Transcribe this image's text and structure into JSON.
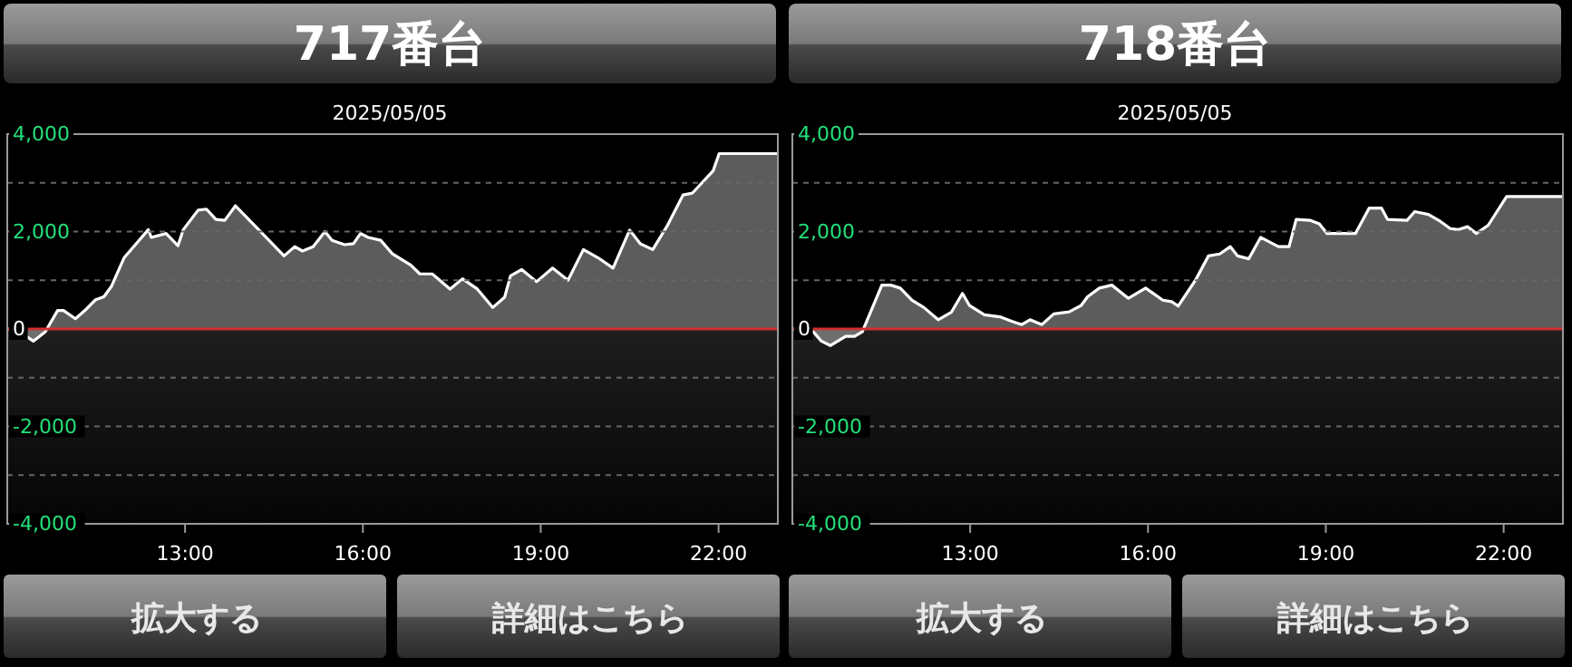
{
  "chart_data": [
    {
      "type": "area",
      "title": "717番台",
      "subtitle": "2025/05/05",
      "xlim": [
        10,
        23
      ],
      "xticks": [
        {
          "value": 13,
          "label": "13:00"
        },
        {
          "value": 16,
          "label": "16:00"
        },
        {
          "value": 19,
          "label": "19:00"
        },
        {
          "value": 22,
          "label": "22:00"
        }
      ],
      "ylim": [
        -4000,
        4000
      ],
      "yticks": [
        {
          "value": 4000,
          "label": "4,000"
        },
        {
          "value": 3000,
          "label": null
        },
        {
          "value": 2000,
          "label": "2,000"
        },
        {
          "value": 1000,
          "label": null
        },
        0,
        {
          "value": -1000,
          "label": null
        },
        {
          "value": -2000,
          "label": "-2,000"
        },
        {
          "value": -3000,
          "label": null
        },
        {
          "value": -4000,
          "label": "-4,000"
        }
      ],
      "grid": "y",
      "marker": "none",
      "line_style": "solid",
      "ref_lines": [
        {
          "axis": "y",
          "value": 0,
          "color": "#d03030"
        }
      ],
      "annotations": [
        "拡大する",
        "詳細はこちら"
      ],
      "series": [
        {
          "color": "#ffffff",
          "x": [
            10.0,
            10.16,
            10.44,
            10.64,
            10.85,
            10.95,
            11.15,
            11.31,
            11.49,
            11.63,
            11.76,
            11.97,
            12.38,
            12.43,
            12.68,
            12.88,
            12.97,
            13.22,
            13.36,
            13.52,
            13.67,
            13.85,
            14.67,
            14.85,
            14.98,
            15.16,
            15.36,
            15.48,
            15.69,
            15.84,
            15.96,
            16.09,
            16.3,
            16.5,
            16.81,
            16.96,
            17.17,
            17.47,
            17.68,
            17.93,
            18.19,
            18.39,
            18.49,
            18.68,
            18.93,
            19.2,
            19.46,
            19.72,
            19.97,
            20.22,
            20.5,
            20.68,
            20.89,
            21.14,
            21.4,
            21.56,
            21.91,
            22.01,
            23.0
          ],
          "values": [
            0,
            -20,
            -250,
            -60,
            380,
            380,
            210,
            380,
            600,
            660,
            880,
            1460,
            2040,
            1880,
            1960,
            1710,
            2040,
            2440,
            2460,
            2250,
            2230,
            2530,
            1500,
            1690,
            1600,
            1690,
            2000,
            1820,
            1730,
            1750,
            1960,
            1880,
            1820,
            1540,
            1310,
            1130,
            1130,
            820,
            1030,
            820,
            440,
            650,
            1090,
            1220,
            970,
            1250,
            1000,
            1630,
            1460,
            1250,
            2030,
            1750,
            1630,
            2130,
            2750,
            2790,
            3250,
            3600,
            3600
          ]
        }
      ]
    },
    {
      "type": "area",
      "title": "718番台",
      "subtitle": "2025/05/05",
      "xlim": [
        10,
        23
      ],
      "xticks": [
        {
          "value": 13,
          "label": "13:00"
        },
        {
          "value": 16,
          "label": "16:00"
        },
        {
          "value": 19,
          "label": "19:00"
        },
        {
          "value": 22,
          "label": "22:00"
        }
      ],
      "ylim": [
        -4000,
        4000
      ],
      "yticks": [
        {
          "value": 4000,
          "label": "4,000"
        },
        {
          "value": 3000,
          "label": null
        },
        {
          "value": 2000,
          "label": "2,000"
        },
        {
          "value": 1000,
          "label": null
        },
        0,
        {
          "value": -1000,
          "label": null
        },
        {
          "value": -2000,
          "label": "-2,000"
        },
        {
          "value": -3000,
          "label": null
        },
        {
          "value": -4000,
          "label": "-4,000"
        }
      ],
      "grid": "y",
      "marker": "none",
      "line_style": "solid",
      "ref_lines": [
        {
          "axis": "y",
          "value": 0,
          "color": "#d03030"
        }
      ],
      "annotations": [
        "拡大する",
        "詳細はこちら"
      ],
      "series": [
        {
          "color": "#ffffff",
          "x": [
            10.0,
            10.34,
            10.49,
            10.64,
            10.9,
            11.05,
            11.18,
            11.51,
            11.66,
            11.82,
            12.02,
            12.22,
            12.46,
            12.68,
            12.87,
            12.99,
            13.24,
            13.5,
            13.7,
            13.87,
            14.01,
            14.21,
            14.41,
            14.67,
            14.87,
            14.98,
            15.18,
            15.39,
            15.67,
            15.96,
            16.25,
            16.4,
            16.51,
            16.8,
            17.02,
            17.21,
            17.39,
            17.51,
            17.7,
            17.9,
            18.2,
            18.38,
            18.5,
            18.74,
            18.89,
            19.02,
            19.5,
            19.73,
            19.94,
            20.04,
            20.37,
            20.5,
            20.73,
            20.93,
            21.1,
            21.24,
            21.39,
            21.54,
            21.74,
            22.05,
            23.0
          ],
          "values": [
            0,
            -40,
            -250,
            -340,
            -150,
            -150,
            -60,
            900,
            900,
            840,
            590,
            440,
            190,
            340,
            730,
            480,
            290,
            250,
            160,
            90,
            190,
            90,
            310,
            350,
            480,
            660,
            840,
            900,
            630,
            840,
            590,
            560,
            470,
            1000,
            1500,
            1540,
            1690,
            1500,
            1440,
            1880,
            1690,
            1690,
            2250,
            2230,
            2160,
            1960,
            1960,
            2480,
            2480,
            2250,
            2230,
            2410,
            2350,
            2210,
            2060,
            2040,
            2100,
            1960,
            2130,
            2720,
            2720
          ]
        }
      ]
    }
  ]
}
